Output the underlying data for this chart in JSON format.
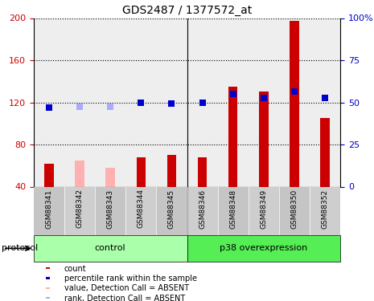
{
  "title": "GDS2487 / 1377572_at",
  "samples": [
    "GSM88341",
    "GSM88342",
    "GSM88343",
    "GSM88344",
    "GSM88345",
    "GSM88346",
    "GSM88348",
    "GSM88349",
    "GSM88350",
    "GSM88352"
  ],
  "bar_values": [
    62,
    65,
    58,
    68,
    70,
    68,
    135,
    130,
    197,
    105
  ],
  "bar_colors": [
    "#cc0000",
    "#ffb0b0",
    "#ffb0b0",
    "#cc0000",
    "#cc0000",
    "#cc0000",
    "#cc0000",
    "#cc0000",
    "#cc0000",
    "#cc0000"
  ],
  "dot_values": [
    46.8,
    47.2,
    47.2,
    50.0,
    49.5,
    50.0,
    55.0,
    52.5,
    56.3,
    52.5
  ],
  "dot_colors": [
    "#0000cc",
    "#aaaaff",
    "#aaaaff",
    "#0000cc",
    "#0000cc",
    "#0000cc",
    "#0000cc",
    "#0000cc",
    "#0000cc",
    "#0000cc"
  ],
  "ylim_left": [
    40,
    200
  ],
  "ylim_right": [
    0,
    100
  ],
  "yticks_left": [
    40,
    80,
    120,
    160,
    200
  ],
  "yticks_right": [
    0,
    25,
    50,
    75,
    100
  ],
  "ytick_labels_right": [
    "0",
    "25",
    "50",
    "75",
    "100%"
  ],
  "ytick_labels_left": [
    "40",
    "80",
    "120",
    "160",
    "200"
  ],
  "protocol_label": "protocol",
  "control_label": "control",
  "p38_label": "p38 overexpression",
  "legend_items": [
    {
      "label": "count",
      "color": "#cc0000"
    },
    {
      "label": "percentile rank within the sample",
      "color": "#0000cc"
    },
    {
      "label": "value, Detection Call = ABSENT",
      "color": "#ffb0b0"
    },
    {
      "label": "rank, Detection Call = ABSENT",
      "color": "#aaaaff"
    }
  ],
  "background_color": "#ffffff",
  "left_axis_color": "#cc0000",
  "right_axis_color": "#0000cc",
  "n_control": 5,
  "n_p38": 5,
  "dot_size": 35,
  "bar_width": 0.3
}
